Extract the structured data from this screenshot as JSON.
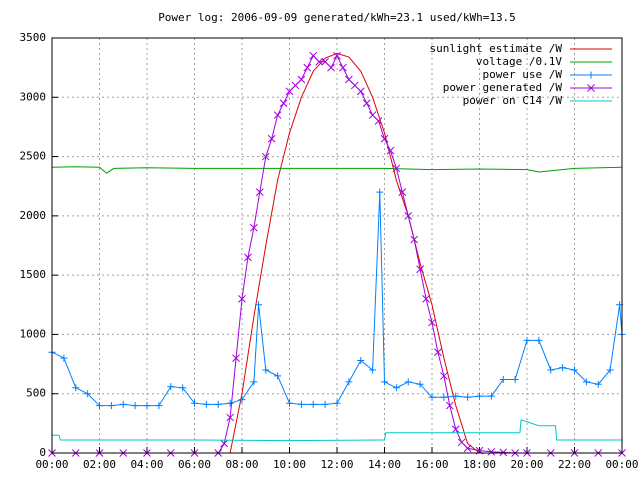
{
  "chart_data": {
    "type": "line",
    "title": "Power log: 2006-09-09 generated/kWh=23.1 used/kWh=13.5",
    "xlim": [
      0,
      24
    ],
    "ylim": [
      0,
      3500
    ],
    "xticks": [
      {
        "value": 0,
        "label": "00:00"
      },
      {
        "value": 2,
        "label": "02:00"
      },
      {
        "value": 4,
        "label": "04:00"
      },
      {
        "value": 6,
        "label": "06:00"
      },
      {
        "value": 8,
        "label": "08:00"
      },
      {
        "value": 10,
        "label": "10:00"
      },
      {
        "value": 12,
        "label": "12:00"
      },
      {
        "value": 14,
        "label": "14:00"
      },
      {
        "value": 16,
        "label": "16:00"
      },
      {
        "value": 18,
        "label": "18:00"
      },
      {
        "value": 20,
        "label": "20:00"
      },
      {
        "value": 22,
        "label": "22:00"
      },
      {
        "value": 24,
        "label": "00:00"
      }
    ],
    "yticks": [
      0,
      500,
      1000,
      1500,
      2000,
      2500,
      3000,
      3500
    ],
    "grid": true,
    "legend": "top-right",
    "series": [
      {
        "name": "sunlight estimate /W",
        "color": "#e00000",
        "marker": "none",
        "x": [
          0,
          7.5,
          8,
          8.5,
          9,
          9.5,
          10,
          10.5,
          11,
          11.5,
          12,
          12.5,
          13,
          13.5,
          14,
          14.5,
          15,
          15.5,
          16,
          16.5,
          17,
          17.5,
          18,
          24
        ],
        "values": [
          0,
          0,
          500,
          1150,
          1750,
          2300,
          2700,
          3000,
          3220,
          3330,
          3370,
          3340,
          3220,
          3000,
          2700,
          2300,
          2000,
          1600,
          1250,
          800,
          400,
          80,
          0,
          0
        ]
      },
      {
        "name": "voltage /0.1V",
        "color": "#00a000",
        "marker": "none",
        "x": [
          0,
          1,
          2,
          2.3,
          2.6,
          4,
          6,
          8,
          10,
          12,
          14,
          16,
          18,
          20,
          20.5,
          22,
          24
        ],
        "values": [
          2410,
          2415,
          2410,
          2360,
          2400,
          2405,
          2400,
          2400,
          2400,
          2400,
          2400,
          2390,
          2395,
          2390,
          2370,
          2400,
          2410
        ]
      },
      {
        "name": "power use /W",
        "color": "#0080ff",
        "marker": "plus",
        "x": [
          0,
          0.5,
          1,
          1.5,
          2,
          2.5,
          3,
          3.5,
          4,
          4.5,
          5,
          5.5,
          6,
          6.5,
          7,
          7.5,
          8,
          8.5,
          8.7,
          9,
          9.5,
          10,
          10.5,
          11,
          11.5,
          12,
          12.5,
          13,
          13.5,
          13.8,
          14,
          14.5,
          15,
          15.5,
          16,
          16.5,
          17,
          17.5,
          18,
          18.5,
          19,
          19.5,
          20,
          20.5,
          21,
          21.5,
          22,
          22.5,
          23,
          23.5,
          23.9,
          24
        ],
        "values": [
          850,
          800,
          550,
          500,
          400,
          400,
          410,
          400,
          400,
          400,
          560,
          550,
          420,
          410,
          410,
          420,
          450,
          600,
          1250,
          700,
          650,
          420,
          410,
          410,
          410,
          420,
          600,
          780,
          700,
          2200,
          600,
          550,
          600,
          580,
          470,
          470,
          480,
          470,
          480,
          480,
          620,
          620,
          950,
          950,
          700,
          720,
          700,
          600,
          580,
          700,
          1250,
          1000
        ]
      },
      {
        "name": "power generated /W",
        "color": "#a000e0",
        "marker": "cross",
        "x": [
          0,
          1,
          2,
          3,
          4,
          5,
          6,
          7,
          7.25,
          7.5,
          7.75,
          8,
          8.25,
          8.5,
          8.75,
          9,
          9.25,
          9.5,
          9.75,
          10,
          10.25,
          10.5,
          10.75,
          11,
          11.25,
          11.5,
          11.75,
          12,
          12.25,
          12.5,
          12.75,
          13,
          13.25,
          13.5,
          13.75,
          14,
          14.25,
          14.5,
          14.75,
          15,
          15.25,
          15.5,
          15.75,
          16,
          16.25,
          16.5,
          16.75,
          17,
          17.25,
          17.5,
          18,
          18.5,
          19,
          19.5,
          20,
          21,
          22,
          23,
          24
        ],
        "values": [
          0,
          0,
          0,
          0,
          0,
          0,
          0,
          0,
          80,
          300,
          800,
          1300,
          1650,
          1900,
          2200,
          2500,
          2650,
          2850,
          2950,
          3050,
          3100,
          3150,
          3250,
          3350,
          3300,
          3300,
          3250,
          3350,
          3250,
          3150,
          3100,
          3050,
          2950,
          2850,
          2800,
          2650,
          2550,
          2400,
          2200,
          2000,
          1800,
          1550,
          1300,
          1100,
          850,
          650,
          400,
          200,
          90,
          40,
          20,
          10,
          5,
          0,
          0,
          0,
          0,
          0,
          0
        ]
      },
      {
        "name": "power on C14 /W",
        "color": "#00c8c8",
        "marker": "none",
        "x": [
          0,
          0.3,
          0.35,
          6,
          9.8,
          14,
          14.05,
          19.7,
          19.75,
          20.5,
          21.2,
          21.25,
          24
        ],
        "values": [
          150,
          150,
          110,
          110,
          105,
          110,
          170,
          170,
          280,
          230,
          230,
          110,
          110
        ]
      }
    ]
  }
}
